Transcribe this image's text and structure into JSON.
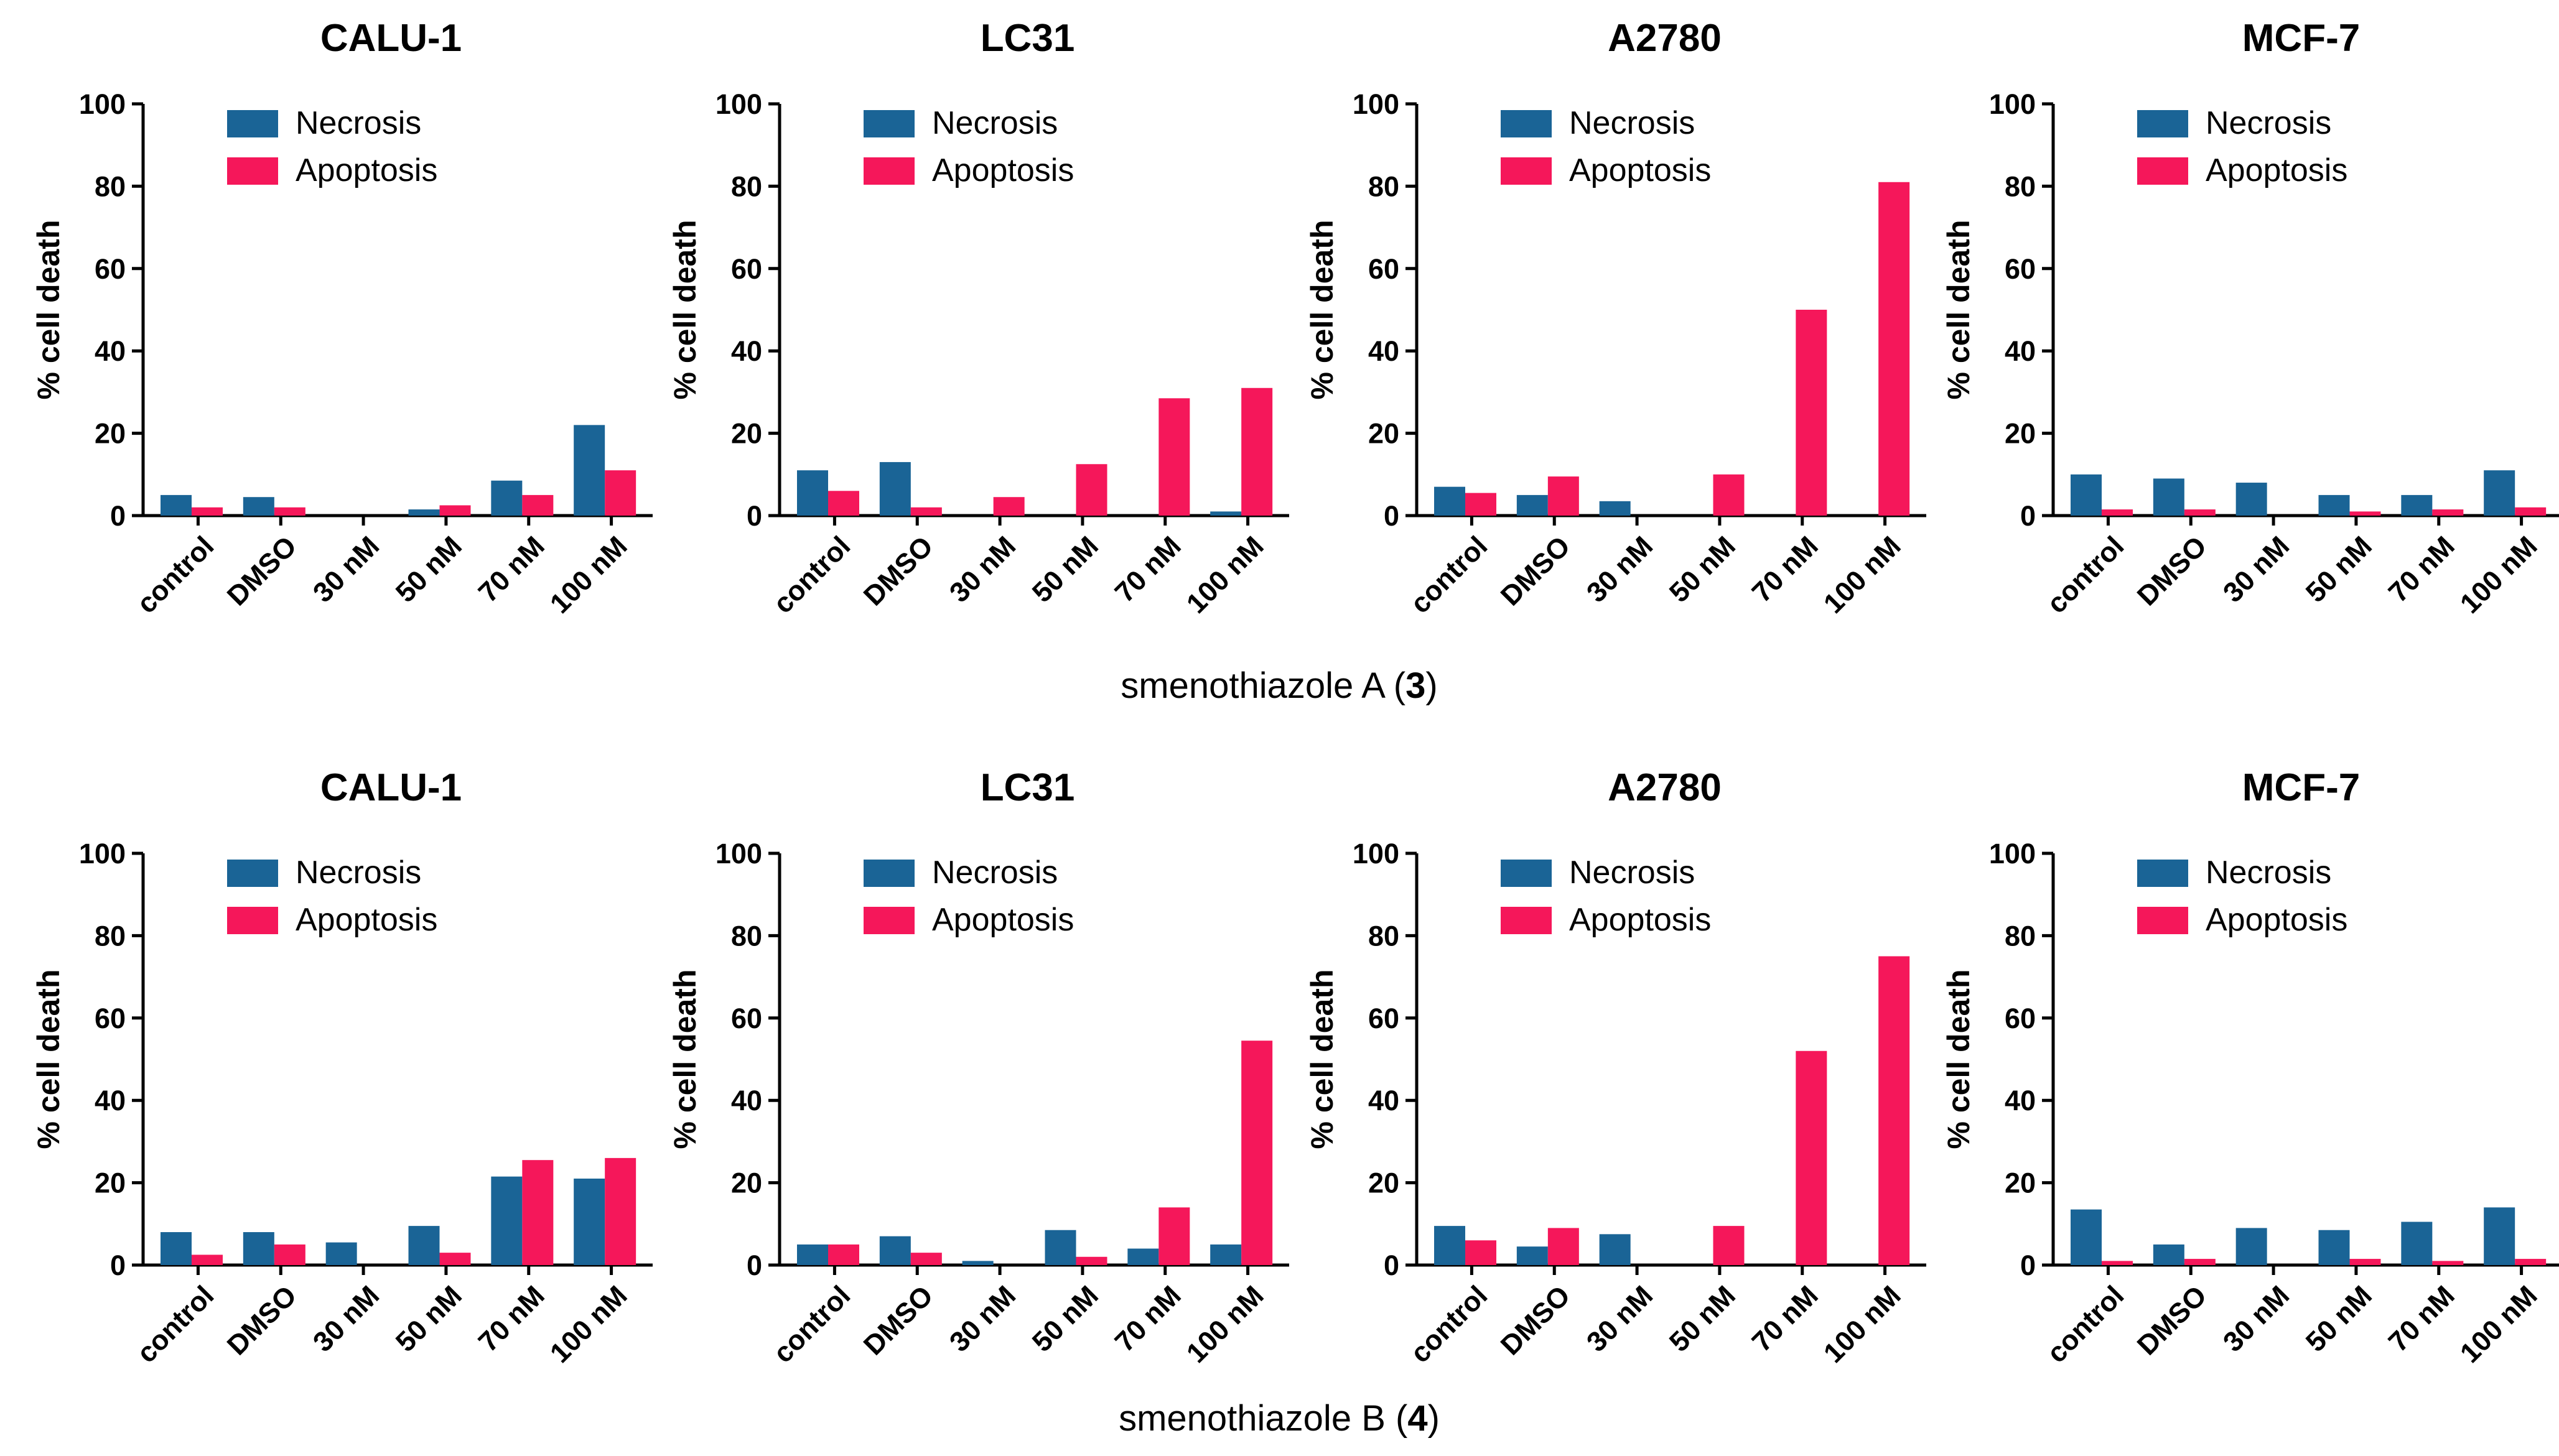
{
  "colors": {
    "necrosis": "#1a6496",
    "apoptosis": "#f5175a"
  },
  "legend": {
    "necrosis_label": "Necrosis",
    "apoptosis_label": "Apoptosis"
  },
  "rows": [
    {
      "caption_text": "smenothiazole A (",
      "caption_bold": "3",
      "caption_end": ")"
    },
    {
      "caption_text": "smenothiazole B (",
      "caption_bold": "4",
      "caption_end": ")"
    }
  ],
  "chart_data": [
    {
      "type": "bar",
      "row": 0,
      "col": 0,
      "title": "CALU-1",
      "ylabel": "% cell death",
      "ylim": [
        0,
        100
      ],
      "yticks": [
        0,
        20,
        40,
        60,
        80,
        100
      ],
      "categories": [
        "control",
        "DMSO",
        "30 nM",
        "50 nM",
        "70 nM",
        "100 nM"
      ],
      "series": [
        {
          "name": "Necrosis",
          "values": [
            5,
            4.5,
            0,
            1.5,
            8.5,
            22
          ]
        },
        {
          "name": "Apoptosis",
          "values": [
            2,
            2,
            0,
            2.5,
            5,
            11
          ]
        }
      ]
    },
    {
      "type": "bar",
      "row": 0,
      "col": 1,
      "title": "LC31",
      "ylabel": "% cell death",
      "ylim": [
        0,
        100
      ],
      "yticks": [
        0,
        20,
        40,
        60,
        80,
        100
      ],
      "categories": [
        "control",
        "DMSO",
        "30 nM",
        "50 nM",
        "70 nM",
        "100 nM"
      ],
      "series": [
        {
          "name": "Necrosis",
          "values": [
            11,
            13,
            0,
            0,
            0,
            1
          ]
        },
        {
          "name": "Apoptosis",
          "values": [
            6,
            2,
            4.5,
            12.5,
            28.5,
            31
          ]
        }
      ]
    },
    {
      "type": "bar",
      "row": 0,
      "col": 2,
      "title": "A2780",
      "ylabel": "% cell death",
      "ylim": [
        0,
        100
      ],
      "yticks": [
        0,
        20,
        40,
        60,
        80,
        100
      ],
      "categories": [
        "control",
        "DMSO",
        "30 nM",
        "50 nM",
        "70 nM",
        "100 nM"
      ],
      "series": [
        {
          "name": "Necrosis",
          "values": [
            7,
            5,
            3.5,
            0,
            0,
            0
          ]
        },
        {
          "name": "Apoptosis",
          "values": [
            5.5,
            9.5,
            0,
            10,
            50,
            81
          ]
        }
      ]
    },
    {
      "type": "bar",
      "row": 0,
      "col": 3,
      "title": "MCF-7",
      "ylabel": "% cell death",
      "ylim": [
        0,
        100
      ],
      "yticks": [
        0,
        20,
        40,
        60,
        80,
        100
      ],
      "categories": [
        "control",
        "DMSO",
        "30 nM",
        "50 nM",
        "70 nM",
        "100 nM"
      ],
      "series": [
        {
          "name": "Necrosis",
          "values": [
            10,
            9,
            8,
            5,
            5,
            11
          ]
        },
        {
          "name": "Apoptosis",
          "values": [
            1.5,
            1.5,
            0,
            1,
            1.5,
            2
          ]
        }
      ]
    },
    {
      "type": "bar",
      "row": 1,
      "col": 0,
      "title": "CALU-1",
      "ylabel": "% cell death",
      "ylim": [
        0,
        100
      ],
      "yticks": [
        0,
        20,
        40,
        60,
        80,
        100
      ],
      "categories": [
        "control",
        "DMSO",
        "30 nM",
        "50 nM",
        "70 nM",
        "100 nM"
      ],
      "series": [
        {
          "name": "Necrosis",
          "values": [
            8,
            8,
            5.5,
            9.5,
            21.5,
            21
          ]
        },
        {
          "name": "Apoptosis",
          "values": [
            2.5,
            5,
            0,
            3,
            25.5,
            26
          ]
        }
      ]
    },
    {
      "type": "bar",
      "row": 1,
      "col": 1,
      "title": "LC31",
      "ylabel": "% cell death",
      "ylim": [
        0,
        100
      ],
      "yticks": [
        0,
        20,
        40,
        60,
        80,
        100
      ],
      "categories": [
        "control",
        "DMSO",
        "30 nM",
        "50 nM",
        "70 nM",
        "100 nM"
      ],
      "series": [
        {
          "name": "Necrosis",
          "values": [
            5,
            7,
            1,
            8.5,
            4,
            5
          ]
        },
        {
          "name": "Apoptosis",
          "values": [
            5,
            3,
            0,
            2,
            14,
            54.5
          ]
        }
      ]
    },
    {
      "type": "bar",
      "row": 1,
      "col": 2,
      "title": "A2780",
      "ylabel": "% cell death",
      "ylim": [
        0,
        100
      ],
      "yticks": [
        0,
        20,
        40,
        60,
        80,
        100
      ],
      "categories": [
        "control",
        "DMSO",
        "30 nM",
        "50 nM",
        "70 nM",
        "100 nM"
      ],
      "series": [
        {
          "name": "Necrosis",
          "values": [
            9.5,
            4.5,
            7.5,
            0,
            0,
            0
          ]
        },
        {
          "name": "Apoptosis",
          "values": [
            6,
            9,
            0,
            9.5,
            52,
            75
          ]
        }
      ]
    },
    {
      "type": "bar",
      "row": 1,
      "col": 3,
      "title": "MCF-7",
      "ylabel": "% cell death",
      "ylim": [
        0,
        100
      ],
      "yticks": [
        0,
        20,
        40,
        60,
        80,
        100
      ],
      "categories": [
        "control",
        "DMSO",
        "30 nM",
        "50 nM",
        "70 nM",
        "100 nM"
      ],
      "series": [
        {
          "name": "Necrosis",
          "values": [
            13.5,
            5,
            9,
            8.5,
            10.5,
            14
          ]
        },
        {
          "name": "Apoptosis",
          "values": [
            1,
            1.5,
            0,
            1.5,
            1,
            1.5
          ]
        }
      ]
    }
  ]
}
